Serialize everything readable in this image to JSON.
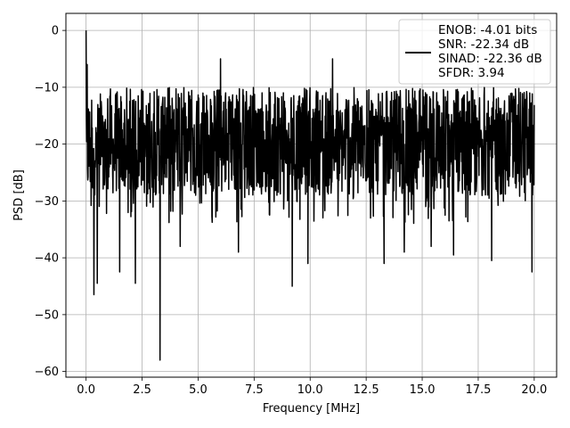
{
  "chart_data": {
    "type": "line",
    "title": "",
    "xlabel": "Frequency [MHz]",
    "ylabel": "PSD [dB]",
    "xlim": [
      -0.9,
      21.0
    ],
    "ylim": [
      -61.0,
      3.0
    ],
    "xticks": [
      0.0,
      2.5,
      5.0,
      7.5,
      10.0,
      12.5,
      15.0,
      17.5,
      20.0
    ],
    "xtick_labels": [
      "0.0",
      "2.5",
      "5.0",
      "7.5",
      "10.0",
      "12.5",
      "15.0",
      "17.5",
      "20.0"
    ],
    "yticks": [
      0,
      -10,
      -20,
      -30,
      -40,
      -50,
      -60
    ],
    "ytick_labels": [
      "0",
      "−10",
      "−20",
      "−30",
      "−40",
      "−50",
      "−60"
    ],
    "grid": true,
    "legend_position": "top-right",
    "series": [
      {
        "legend_lines": [
          "ENOB: -4.01 bits",
          "SNR: -22.34 dB",
          "SINAD: -22.36 dB",
          "SFDR: 3.94"
        ],
        "color": "#000000",
        "x_range": [
          0.0,
          20.0
        ],
        "typical_range_db": [
          -28,
          -10
        ],
        "notable_points": [
          {
            "x": 0.0,
            "y": 0.0
          },
          {
            "x": 0.05,
            "y": -6.0
          },
          {
            "x": 0.35,
            "y": -46.5
          },
          {
            "x": 0.5,
            "y": -44.5
          },
          {
            "x": 1.5,
            "y": -42.5
          },
          {
            "x": 2.2,
            "y": -44.5
          },
          {
            "x": 3.3,
            "y": -58.0
          },
          {
            "x": 4.2,
            "y": -38.0
          },
          {
            "x": 6.0,
            "y": -5.0
          },
          {
            "x": 6.8,
            "y": -39.0
          },
          {
            "x": 9.2,
            "y": -45.0
          },
          {
            "x": 9.9,
            "y": -41.0
          },
          {
            "x": 11.0,
            "y": -5.0
          },
          {
            "x": 13.3,
            "y": -41.0
          },
          {
            "x": 14.2,
            "y": -39.0
          },
          {
            "x": 15.4,
            "y": -38.0
          },
          {
            "x": 16.4,
            "y": -39.5
          },
          {
            "x": 18.1,
            "y": -40.5
          },
          {
            "x": 19.9,
            "y": -42.5
          }
        ]
      }
    ]
  }
}
